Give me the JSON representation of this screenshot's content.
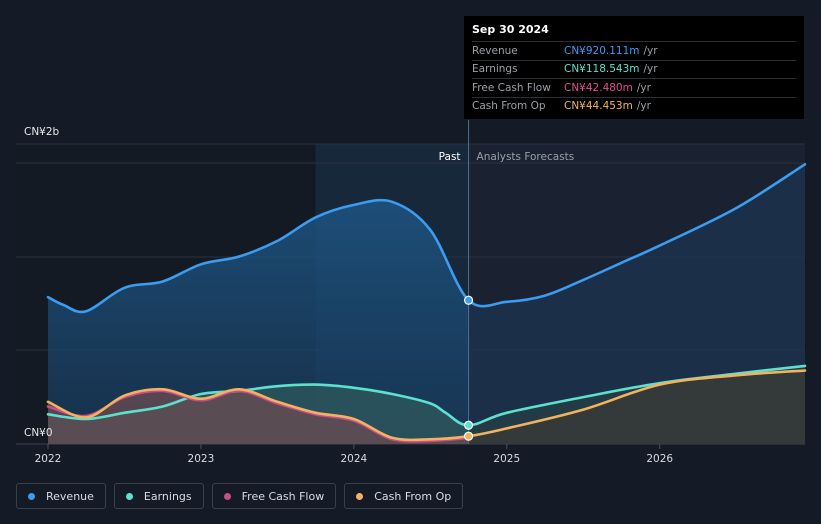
{
  "tooltip": {
    "date": "Sep 30 2024",
    "rows": [
      {
        "label": "Revenue",
        "value": "CN¥920.111m",
        "unit": "/yr",
        "color": "#3b9cf0"
      },
      {
        "label": "Earnings",
        "value": "CN¥118.543m",
        "unit": "/yr",
        "color": "#5ee0cf"
      },
      {
        "label": "Free Cash Flow",
        "value": "CN¥42.480m",
        "unit": "/yr",
        "color": "#e0528f"
      },
      {
        "label": "Cash From Op",
        "value": "CN¥44.453m",
        "unit": "/yr",
        "color": "#f2b35e"
      }
    ]
  },
  "legend": [
    {
      "label": "Revenue",
      "color": "#3b9cf0"
    },
    {
      "label": "Earnings",
      "color": "#5ee0cf"
    },
    {
      "label": "Free Cash Flow",
      "color": "#c84d8a"
    },
    {
      "label": "Cash From Op",
      "color": "#f2b35e"
    }
  ],
  "chart_data": {
    "type": "line",
    "title": "",
    "y_label_top": "CN¥2b",
    "y_label_bottom": "CN¥0",
    "ylim": [
      0,
      1.92
    ],
    "xlim": [
      2022.0,
      2026.95
    ],
    "x_ticks": [
      2022,
      2023,
      2024,
      2025,
      2026
    ],
    "x_tick_labels": [
      "2022",
      "2023",
      "2024",
      "2025",
      "2026"
    ],
    "past_label": "Past",
    "forecast_label": "Analysts Forecasts",
    "divider_x": 2024.75,
    "highlight_start_x": 2023.75,
    "series": [
      {
        "name": "Revenue",
        "color": "#3b9cf0",
        "x": [
          2022.0,
          2022.1,
          2022.25,
          2022.5,
          2022.75,
          2023.0,
          2023.25,
          2023.5,
          2023.75,
          2024.0,
          2024.25,
          2024.5,
          2024.75,
          2025.0,
          2025.25,
          2025.5,
          2025.75,
          2026.0,
          2026.5,
          2026.95
        ],
        "y": [
          0.94,
          0.89,
          0.85,
          1.0,
          1.04,
          1.15,
          1.2,
          1.3,
          1.45,
          1.53,
          1.55,
          1.37,
          0.92,
          0.91,
          0.95,
          1.05,
          1.16,
          1.27,
          1.51,
          1.79
        ]
      },
      {
        "name": "Earnings",
        "color": "#5ee0cf",
        "x": [
          2022.0,
          2022.25,
          2022.5,
          2022.75,
          2023.0,
          2023.25,
          2023.5,
          2023.75,
          2024.0,
          2024.25,
          2024.5,
          2024.6,
          2024.75,
          2025.0,
          2025.5,
          2026.0,
          2026.5,
          2026.95
        ],
        "y": [
          0.19,
          0.16,
          0.2,
          0.24,
          0.32,
          0.34,
          0.37,
          0.38,
          0.36,
          0.32,
          0.26,
          0.2,
          0.12,
          0.2,
          0.3,
          0.39,
          0.45,
          0.5
        ]
      },
      {
        "name": "Free Cash Flow",
        "color": "#c84d8a",
        "x": [
          2022.0,
          2022.25,
          2022.5,
          2022.75,
          2023.0,
          2023.25,
          2023.5,
          2023.75,
          2024.0,
          2024.25,
          2024.5,
          2024.75
        ],
        "y": [
          0.24,
          0.18,
          0.3,
          0.34,
          0.28,
          0.34,
          0.26,
          0.19,
          0.15,
          0.03,
          0.02,
          0.04
        ]
      },
      {
        "name": "Cash From Op",
        "color": "#f2b35e",
        "x": [
          2022.0,
          2022.25,
          2022.5,
          2022.75,
          2023.0,
          2023.25,
          2023.5,
          2023.75,
          2024.0,
          2024.25,
          2024.5,
          2024.75,
          2025.0,
          2025.5,
          2026.0,
          2026.5,
          2026.95
        ],
        "y": [
          0.27,
          0.17,
          0.31,
          0.35,
          0.29,
          0.35,
          0.27,
          0.2,
          0.16,
          0.04,
          0.03,
          0.05,
          0.1,
          0.22,
          0.38,
          0.44,
          0.47
        ]
      }
    ]
  }
}
